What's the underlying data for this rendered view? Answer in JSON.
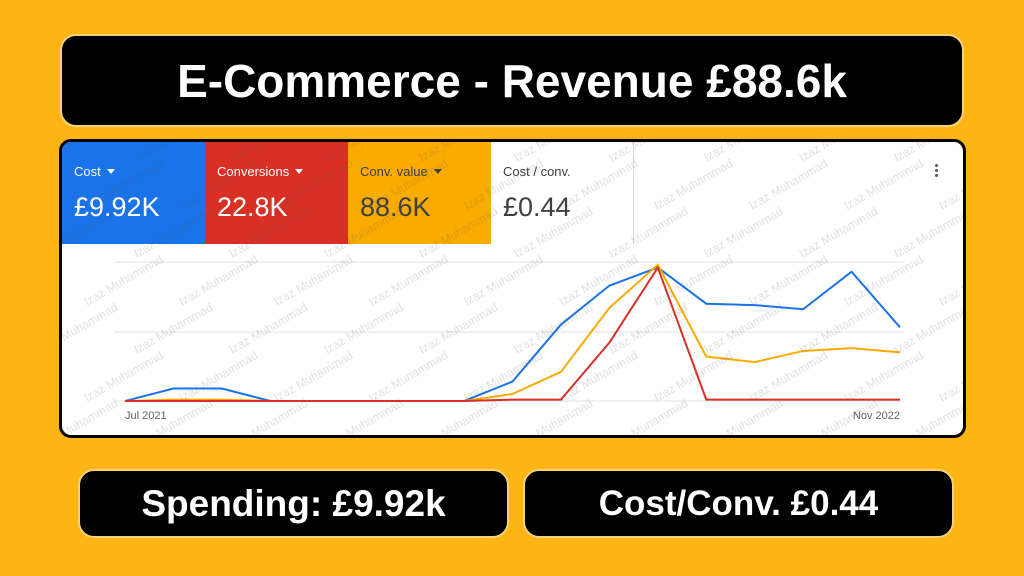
{
  "header": {
    "title": "E-Commerce - Revenue £88.6k"
  },
  "metrics": [
    {
      "label": "Cost",
      "value": "£9.92K",
      "color": "#1a73e8",
      "dropdown": true
    },
    {
      "label": "Conversions",
      "value": "22.8K",
      "color": "#d93025",
      "dropdown": true
    },
    {
      "label": "Conv. value",
      "value": "88.6K",
      "color": "#f9ab00",
      "dropdown": true
    },
    {
      "label": "Cost / conv.",
      "value": "£0.44",
      "color": "#ffffff",
      "dropdown": false
    }
  ],
  "watermark": "Izaz Muhammad",
  "chart_data": {
    "type": "line",
    "categories": [
      "Jul 2021",
      null,
      null,
      null,
      null,
      null,
      null,
      null,
      null,
      null,
      null,
      null,
      null,
      null,
      null,
      null,
      "Nov 2022"
    ],
    "ylim": [
      0,
      100
    ],
    "series": [
      {
        "name": "Cost",
        "color": "#1a73e8",
        "values": [
          0,
          9,
          9,
          0,
          0,
          0,
          0,
          0,
          14,
          55,
          83,
          96,
          70,
          69,
          66,
          93,
          53
        ]
      },
      {
        "name": "Conv. value",
        "color": "#f9ab00",
        "values": [
          0,
          1,
          1,
          0,
          0,
          0,
          0,
          0,
          5,
          21,
          67,
          98,
          32,
          28,
          36,
          38,
          35
        ]
      },
      {
        "name": "Conversions",
        "color": "#d93025",
        "values": [
          0,
          0,
          0,
          0,
          0,
          0,
          0,
          0,
          1,
          1,
          42,
          96,
          1,
          1,
          1,
          1,
          1
        ]
      }
    ]
  },
  "footer": {
    "spending": "Spending: £9.92k",
    "cost_per_conv": "Cost/Conv. £0.44"
  }
}
